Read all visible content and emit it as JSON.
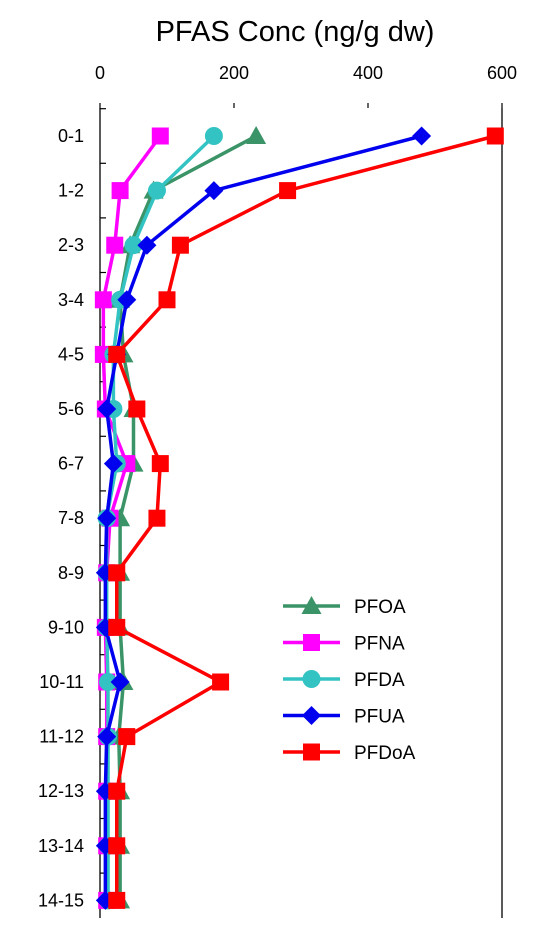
{
  "chart_data": {
    "type": "line",
    "title": "PFAS Conc (ng/g dw)",
    "orientation": "horizontal-values-vertical-categories",
    "x_axis": {
      "position": "top",
      "range": [
        0,
        600
      ],
      "ticks": [
        "0",
        "200",
        "400",
        "600"
      ]
    },
    "categories": [
      "0-1",
      "1-2",
      "2-3",
      "3-4",
      "4-5",
      "5-6",
      "6-7",
      "7-8",
      "8-9",
      "9-10",
      "10-11",
      "11-12",
      "12-13",
      "13-14",
      "14-15"
    ],
    "legend": {
      "placement": "right-middle"
    },
    "grid": false,
    "series": [
      {
        "name": "PFOA",
        "color": "#3a9467",
        "marker": "triangle",
        "values": [
          233,
          80,
          45,
          30,
          35,
          50,
          50,
          30,
          30,
          30,
          35,
          28,
          30,
          30,
          30
        ]
      },
      {
        "name": "PFNA",
        "color": "#ff00ff",
        "marker": "square",
        "values": [
          90,
          30,
          22,
          5,
          5,
          8,
          40,
          15,
          10,
          8,
          10,
          10,
          10,
          10,
          10
        ]
      },
      {
        "name": "PFDA",
        "color": "#33c3c3",
        "marker": "circle",
        "values": [
          170,
          85,
          50,
          30,
          20,
          20,
          25,
          10,
          10,
          10,
          12,
          12,
          12,
          12,
          12
        ]
      },
      {
        "name": "PFUA",
        "color": "#0000ee",
        "marker": "diamond",
        "values": [
          480,
          170,
          70,
          40,
          25,
          10,
          20,
          10,
          8,
          8,
          30,
          10,
          8,
          8,
          8
        ]
      },
      {
        "name": "PFDoA",
        "color": "#ff0000",
        "marker": "square",
        "values": [
          590,
          280,
          120,
          100,
          25,
          55,
          90,
          85,
          25,
          25,
          180,
          40,
          25,
          25,
          25
        ]
      }
    ]
  }
}
